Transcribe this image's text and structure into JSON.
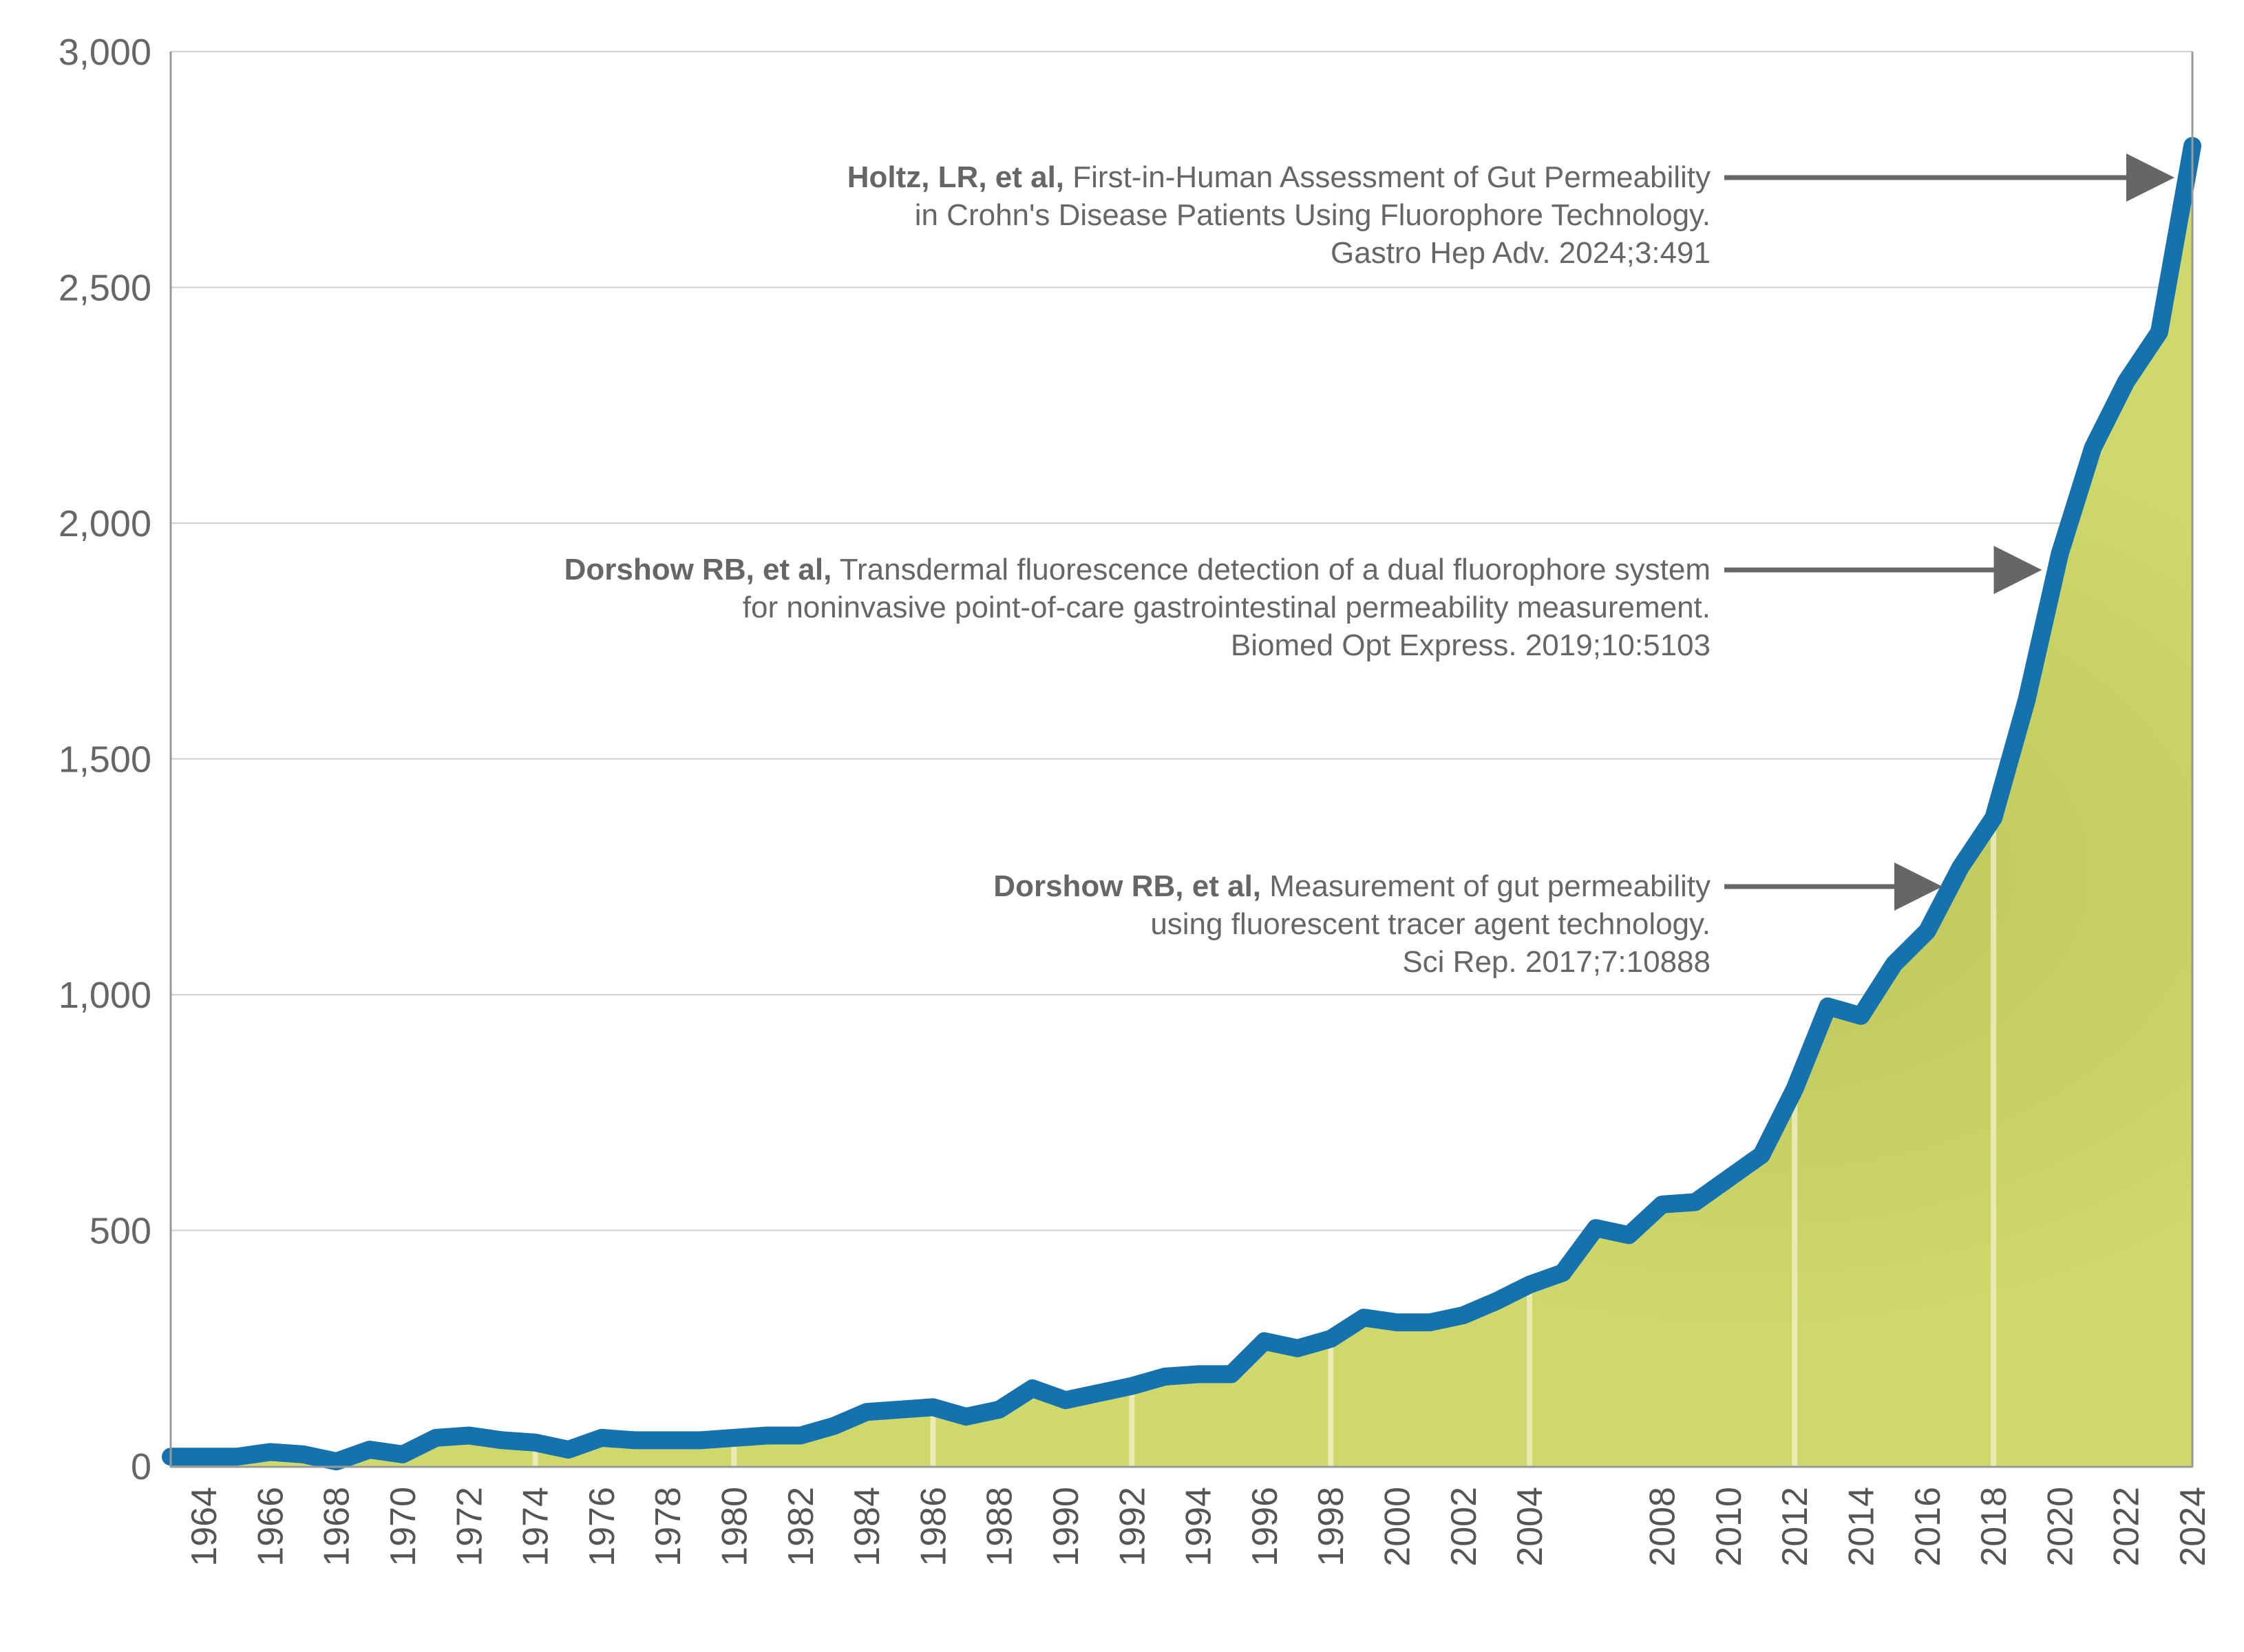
{
  "chart_data": {
    "type": "area",
    "title": "",
    "xlabel": "",
    "ylabel": "",
    "ylim": [
      0,
      3000
    ],
    "xlim": [
      1963,
      2024
    ],
    "y_ticks": [
      0,
      500,
      1000,
      1500,
      2000,
      2500,
      3000
    ],
    "y_tick_labels": [
      "0",
      "500",
      "1,000",
      "1,500",
      "2,000",
      "2,500",
      "3,000"
    ],
    "x_tick_labels": [
      "1964",
      "1966",
      "1968",
      "1970",
      "1972",
      "1974",
      "1976",
      "1978",
      "1980",
      "1982",
      "1984",
      "1986",
      "1988",
      "1990",
      "1992",
      "1994",
      "1996",
      "1998",
      "2000",
      "2002",
      "2004",
      "2008",
      "2010",
      "2012",
      "2014",
      "2016",
      "2018",
      "2020",
      "2022",
      "2024"
    ],
    "grid": true,
    "colors": {
      "line": "#1672ad",
      "fill": "#cfd86a",
      "grid": "#d0d0d0",
      "arrow": "#666666"
    },
    "series": [
      {
        "x": [
          1963,
          1964,
          1965,
          1966,
          1967,
          1968,
          1969,
          1970,
          1971,
          1972,
          1973,
          1974,
          1975,
          1976,
          1977,
          1978,
          1979,
          1980,
          1981,
          1982,
          1983,
          1984,
          1985,
          1986,
          1987,
          1988,
          1989,
          1990,
          1991,
          1992,
          1993,
          1994,
          1995,
          1996,
          1997,
          1998,
          1999,
          2000,
          2001,
          2002,
          2003,
          2004,
          2005,
          2006,
          2007,
          2008,
          2009,
          2010,
          2011,
          2012,
          2013,
          2014,
          2015,
          2016,
          2017,
          2018,
          2019,
          2020,
          2021,
          2022,
          2023,
          2024
        ],
        "values": [
          20,
          20,
          20,
          30,
          25,
          10,
          35,
          25,
          60,
          65,
          55,
          50,
          35,
          60,
          55,
          55,
          55,
          60,
          65,
          65,
          85,
          115,
          120,
          125,
          105,
          120,
          165,
          140,
          155,
          170,
          190,
          195,
          195,
          265,
          250,
          270,
          315,
          305,
          305,
          320,
          350,
          385,
          410,
          505,
          490,
          555,
          560,
          610,
          660,
          800,
          975,
          955,
          1065,
          1135,
          1270,
          1375,
          1625,
          1935,
          2160,
          2300,
          2405,
          2800
        ]
      }
    ],
    "annotations": [
      {
        "bold": "Holtz, LR, et al,",
        "line1": " First-in-Human Assessment of Gut Permeability",
        "line2": "in Crohn's Disease Patients Using Fluorophore Technology.",
        "line3": "Gastro Hep Adv. 2024;3:491",
        "arrow_to_year": 2024,
        "arrow_to_value": 2740
      },
      {
        "bold": "Dorshow RB, et al,",
        "line1": " Transdermal fluorescence detection of a dual fluorophore system",
        "line2": "for noninvasive point-of-care gastrointestinal permeability measurement.",
        "line3": "Biomed Opt Express. 2019;10:5103",
        "arrow_to_year": 2020,
        "arrow_to_value": 1900
      },
      {
        "bold": "Dorshow RB, et al,",
        "line1": " Measurement of gut permeability",
        "line2": "using fluorescent tracer  agent technology.",
        "line3": "Sci Rep. 2017;7:10888",
        "arrow_to_year": 2017,
        "arrow_to_value": 1230
      }
    ]
  }
}
